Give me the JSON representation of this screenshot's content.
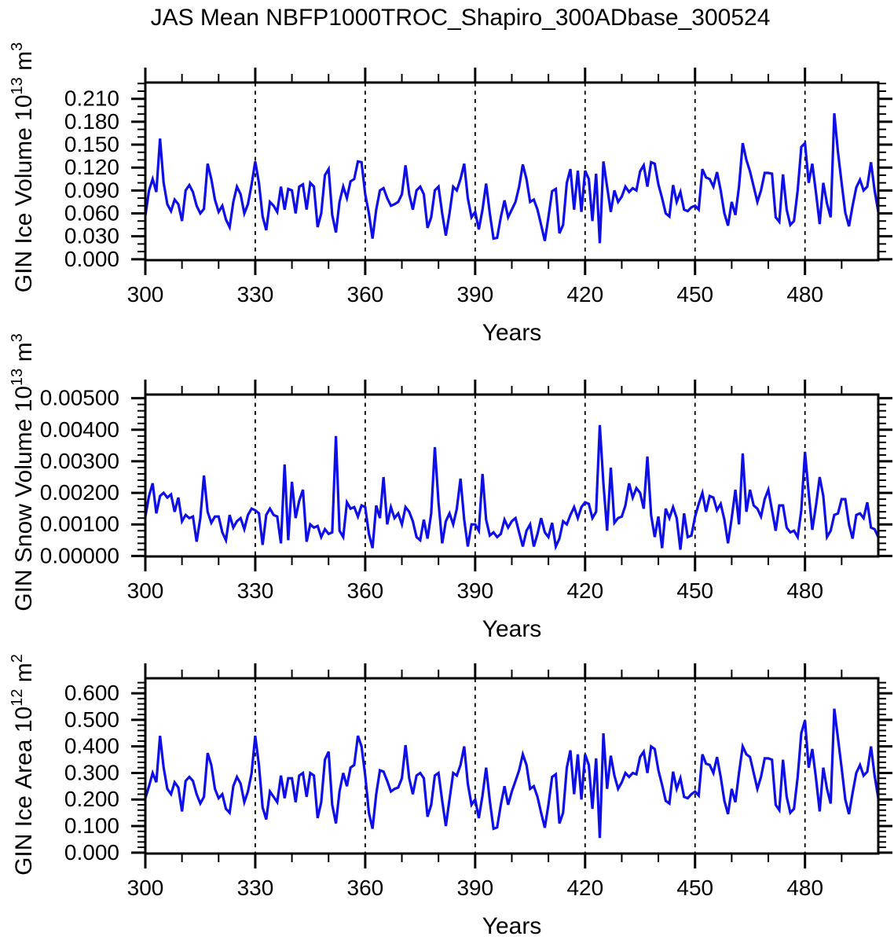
{
  "title": "JAS Mean NBFP1000TROC_Shapiro_300ADbase_300524",
  "line_color": "#0e0ee8",
  "chart_data": [
    {
      "type": "line",
      "name": "gin-ice-volume",
      "ylabel_parts": [
        {
          "t": "GIN Ice Volume 10"
        },
        {
          "t": "13",
          "sup": true
        },
        {
          "t": " m"
        },
        {
          "t": "3",
          "sup": true
        }
      ],
      "ylabel_text": "GIN Ice Volume 10^13 m^3",
      "xlabel": "Years",
      "x_range": [
        300,
        500
      ],
      "x_step": 1,
      "xticks": [
        300,
        330,
        360,
        390,
        420,
        450,
        480
      ],
      "xminor_step": 10,
      "grid_x": [
        330,
        360,
        390,
        420,
        450,
        480
      ],
      "ylim": [
        0.0,
        0.21
      ],
      "frame_ylim": [
        -0.0012,
        0.2313
      ],
      "ytick_labels": [
        "0.000",
        "0.030",
        "0.060",
        "0.090",
        "0.120",
        "0.150",
        "0.180",
        "0.210"
      ],
      "ytick_values": [
        0.0,
        0.03,
        0.06,
        0.09,
        0.12,
        0.15,
        0.18,
        0.21
      ],
      "yminor_step": 0.01,
      "values": [
        0.057,
        0.09,
        0.105,
        0.088,
        0.158,
        0.1,
        0.072,
        0.063,
        0.078,
        0.072,
        0.05,
        0.09,
        0.097,
        0.088,
        0.07,
        0.06,
        0.066,
        0.125,
        0.105,
        0.078,
        0.062,
        0.07,
        0.052,
        0.042,
        0.075,
        0.095,
        0.085,
        0.06,
        0.072,
        0.098,
        0.128,
        0.1,
        0.056,
        0.038,
        0.075,
        0.07,
        0.062,
        0.095,
        0.065,
        0.092,
        0.09,
        0.06,
        0.095,
        0.098,
        0.065,
        0.1,
        0.095,
        0.042,
        0.06,
        0.11,
        0.118,
        0.058,
        0.035,
        0.075,
        0.095,
        0.08,
        0.102,
        0.105,
        0.128,
        0.127,
        0.085,
        0.06,
        0.027,
        0.065,
        0.09,
        0.093,
        0.08,
        0.07,
        0.072,
        0.075,
        0.085,
        0.123,
        0.085,
        0.065,
        0.09,
        0.095,
        0.085,
        0.041,
        0.055,
        0.09,
        0.095,
        0.06,
        0.031,
        0.06,
        0.095,
        0.09,
        0.105,
        0.125,
        0.08,
        0.055,
        0.062,
        0.039,
        0.065,
        0.099,
        0.06,
        0.027,
        0.028,
        0.055,
        0.077,
        0.055,
        0.065,
        0.075,
        0.095,
        0.124,
        0.105,
        0.075,
        0.078,
        0.065,
        0.045,
        0.024,
        0.055,
        0.089,
        0.092,
        0.034,
        0.045,
        0.1,
        0.118,
        0.065,
        0.116,
        0.062,
        0.116,
        0.105,
        0.05,
        0.112,
        0.021,
        0.128,
        0.095,
        0.062,
        0.09,
        0.075,
        0.082,
        0.095,
        0.088,
        0.093,
        0.09,
        0.115,
        0.123,
        0.095,
        0.127,
        0.125,
        0.098,
        0.08,
        0.06,
        0.056,
        0.097,
        0.075,
        0.088,
        0.065,
        0.063,
        0.068,
        0.07,
        0.065,
        0.118,
        0.107,
        0.105,
        0.095,
        0.114,
        0.09,
        0.06,
        0.044,
        0.075,
        0.058,
        0.095,
        0.152,
        0.13,
        0.115,
        0.095,
        0.075,
        0.09,
        0.113,
        0.113,
        0.112,
        0.055,
        0.049,
        0.111,
        0.065,
        0.045,
        0.05,
        0.09,
        0.147,
        0.152,
        0.1,
        0.125,
        0.087,
        0.046,
        0.1,
        0.073,
        0.055,
        0.191,
        0.14,
        0.1,
        0.061,
        0.043,
        0.07,
        0.094,
        0.104,
        0.09,
        0.095,
        0.127,
        0.09,
        0.062
      ]
    },
    {
      "type": "line",
      "name": "gin-snow-volume",
      "ylabel_parts": [
        {
          "t": "GIN Snow Volume 10"
        },
        {
          "t": "13",
          "sup": true
        },
        {
          "t": " m"
        },
        {
          "t": "3",
          "sup": true
        }
      ],
      "ylabel_text": "GIN Snow Volume 10^13 m^3",
      "xlabel": "Years",
      "x_range": [
        300,
        500
      ],
      "x_step": 1,
      "xticks": [
        300,
        330,
        360,
        390,
        420,
        450,
        480
      ],
      "xminor_step": 10,
      "grid_x": [
        330,
        360,
        390,
        420,
        450,
        480
      ],
      "ylim": [
        0.0,
        0.005
      ],
      "frame_ylim": [
        -1.5e-05,
        0.005115
      ],
      "ytick_labels": [
        "0.00000",
        "0.00100",
        "0.00200",
        "0.00300",
        "0.00400",
        "0.00500"
      ],
      "ytick_values": [
        0.0,
        0.001,
        0.002,
        0.003,
        0.004,
        0.005
      ],
      "yminor_step": 0.0002,
      "values": [
        0.00125,
        0.0019,
        0.0023,
        0.00135,
        0.0019,
        0.002,
        0.00185,
        0.00195,
        0.0014,
        0.00185,
        0.0011,
        0.0013,
        0.0012,
        0.00125,
        0.00045,
        0.0012,
        0.00255,
        0.0014,
        0.00105,
        0.00125,
        0.00125,
        0.00075,
        0.0005,
        0.0013,
        0.0009,
        0.0011,
        0.0012,
        0.00085,
        0.0013,
        0.0015,
        0.00145,
        0.00135,
        0.00035,
        0.0013,
        0.0015,
        0.0013,
        0.00125,
        0.0004,
        0.0029,
        0.0005,
        0.00235,
        0.0012,
        0.00175,
        0.0021,
        0.00045,
        0.001,
        0.0009,
        0.00095,
        0.0006,
        0.00085,
        0.0007,
        0.00075,
        0.0038,
        0.0008,
        0.0006,
        0.0017,
        0.0015,
        0.00155,
        0.00125,
        0.0016,
        0.00155,
        0.0007,
        0.00025,
        0.0016,
        0.0012,
        0.0025,
        0.001,
        0.00155,
        0.0012,
        0.00135,
        0.001,
        0.00155,
        0.0014,
        0.0011,
        0.0006,
        0.0005,
        0.00115,
        0.00055,
        0.00135,
        0.00345,
        0.0017,
        0.0004,
        0.0011,
        0.00135,
        0.001,
        0.0015,
        0.00245,
        0.00115,
        0.0003,
        0.001,
        0.001,
        0.0008,
        0.0026,
        0.00115,
        0.00065,
        0.00075,
        0.0006,
        0.0007,
        0.00115,
        0.0009,
        0.0011,
        0.0012,
        0.00075,
        0.0003,
        0.0008,
        0.001,
        0.0003,
        0.0007,
        0.0012,
        0.00075,
        0.0006,
        0.00105,
        0.0003,
        0.00055,
        0.0011,
        0.001,
        0.0013,
        0.00155,
        0.0012,
        0.00155,
        0.0017,
        0.00165,
        0.0012,
        0.0014,
        0.00415,
        0.0023,
        0.0008,
        0.0028,
        0.00105,
        0.0012,
        0.00125,
        0.0016,
        0.0023,
        0.00185,
        0.00215,
        0.002,
        0.0015,
        0.00315,
        0.0013,
        0.0006,
        0.00125,
        0.00025,
        0.0015,
        0.0012,
        0.00155,
        0.0012,
        0.0002,
        0.00135,
        0.0006,
        0.00065,
        0.00125,
        0.00165,
        0.002,
        0.0014,
        0.0019,
        0.00185,
        0.00145,
        0.00165,
        0.00115,
        0.0004,
        0.0012,
        0.0021,
        0.001,
        0.00325,
        0.0014,
        0.0021,
        0.0016,
        0.0015,
        0.00125,
        0.0018,
        0.0021,
        0.00145,
        0.0008,
        0.0016,
        0.0016,
        0.0009,
        0.00075,
        0.0008,
        0.0006,
        0.00145,
        0.0033,
        0.002,
        0.00083,
        0.0016,
        0.0025,
        0.0019,
        0.0006,
        0.0008,
        0.0013,
        0.00135,
        0.0018,
        0.0018,
        0.001,
        0.00055,
        0.0013,
        0.00135,
        0.0012,
        0.0017,
        0.0009,
        0.00085,
        0.0006
      ]
    },
    {
      "type": "line",
      "name": "gin-ice-area",
      "ylabel_parts": [
        {
          "t": "GIN Ice Area 10"
        },
        {
          "t": "12",
          "sup": true
        },
        {
          "t": " m"
        },
        {
          "t": "2",
          "sup": true
        }
      ],
      "ylabel_text": "GIN Ice Area 10^12 m^2",
      "xlabel": "Years",
      "x_range": [
        300,
        500
      ],
      "x_step": 1,
      "xticks": [
        300,
        330,
        360,
        390,
        420,
        450,
        480
      ],
      "xminor_step": 10,
      "grid_x": [
        330,
        360,
        390,
        420,
        450,
        480
      ],
      "ylim": [
        0.0,
        0.6
      ],
      "frame_ylim": [
        -0.0035,
        0.6565
      ],
      "ytick_labels": [
        "0.000",
        "0.100",
        "0.200",
        "0.300",
        "0.400",
        "0.500",
        "0.600"
      ],
      "ytick_values": [
        0.0,
        0.1,
        0.2,
        0.3,
        0.4,
        0.5,
        0.6
      ],
      "yminor_step": 0.02,
      "values": [
        0.205,
        0.25,
        0.3,
        0.265,
        0.44,
        0.32,
        0.24,
        0.22,
        0.265,
        0.245,
        0.155,
        0.27,
        0.285,
        0.27,
        0.22,
        0.185,
        0.21,
        0.375,
        0.33,
        0.24,
        0.205,
        0.22,
        0.165,
        0.15,
        0.25,
        0.285,
        0.26,
        0.19,
        0.23,
        0.3,
        0.44,
        0.33,
        0.17,
        0.125,
        0.23,
        0.21,
        0.19,
        0.29,
        0.205,
        0.28,
        0.28,
        0.19,
        0.29,
        0.3,
        0.21,
        0.3,
        0.29,
        0.13,
        0.19,
        0.35,
        0.38,
        0.18,
        0.11,
        0.23,
        0.3,
        0.25,
        0.32,
        0.33,
        0.44,
        0.4,
        0.29,
        0.15,
        0.09,
        0.22,
        0.31,
        0.305,
        0.27,
        0.23,
        0.24,
        0.245,
        0.28,
        0.405,
        0.28,
        0.22,
        0.29,
        0.3,
        0.28,
        0.135,
        0.18,
        0.29,
        0.3,
        0.195,
        0.1,
        0.2,
        0.3,
        0.29,
        0.33,
        0.4,
        0.26,
        0.18,
        0.2,
        0.13,
        0.215,
        0.32,
        0.195,
        0.09,
        0.095,
        0.18,
        0.25,
        0.18,
        0.23,
        0.27,
        0.31,
        0.37,
        0.33,
        0.24,
        0.25,
        0.21,
        0.15,
        0.094,
        0.18,
        0.285,
        0.295,
        0.11,
        0.15,
        0.32,
        0.385,
        0.22,
        0.37,
        0.2,
        0.37,
        0.33,
        0.165,
        0.355,
        0.055,
        0.449,
        0.24,
        0.365,
        0.29,
        0.24,
        0.265,
        0.3,
        0.285,
        0.3,
        0.295,
        0.36,
        0.38,
        0.3,
        0.4,
        0.39,
        0.31,
        0.255,
        0.195,
        0.185,
        0.305,
        0.24,
        0.28,
        0.21,
        0.205,
        0.22,
        0.23,
        0.215,
        0.37,
        0.335,
        0.33,
        0.3,
        0.36,
        0.285,
        0.195,
        0.145,
        0.24,
        0.19,
        0.3,
        0.4,
        0.37,
        0.36,
        0.3,
        0.24,
        0.285,
        0.355,
        0.355,
        0.35,
        0.18,
        0.16,
        0.35,
        0.21,
        0.15,
        0.165,
        0.285,
        0.45,
        0.498,
        0.32,
        0.39,
        0.28,
        0.155,
        0.32,
        0.24,
        0.185,
        0.542,
        0.43,
        0.32,
        0.2,
        0.145,
        0.225,
        0.3,
        0.33,
        0.29,
        0.305,
        0.4,
        0.29,
        0.205
      ]
    }
  ]
}
